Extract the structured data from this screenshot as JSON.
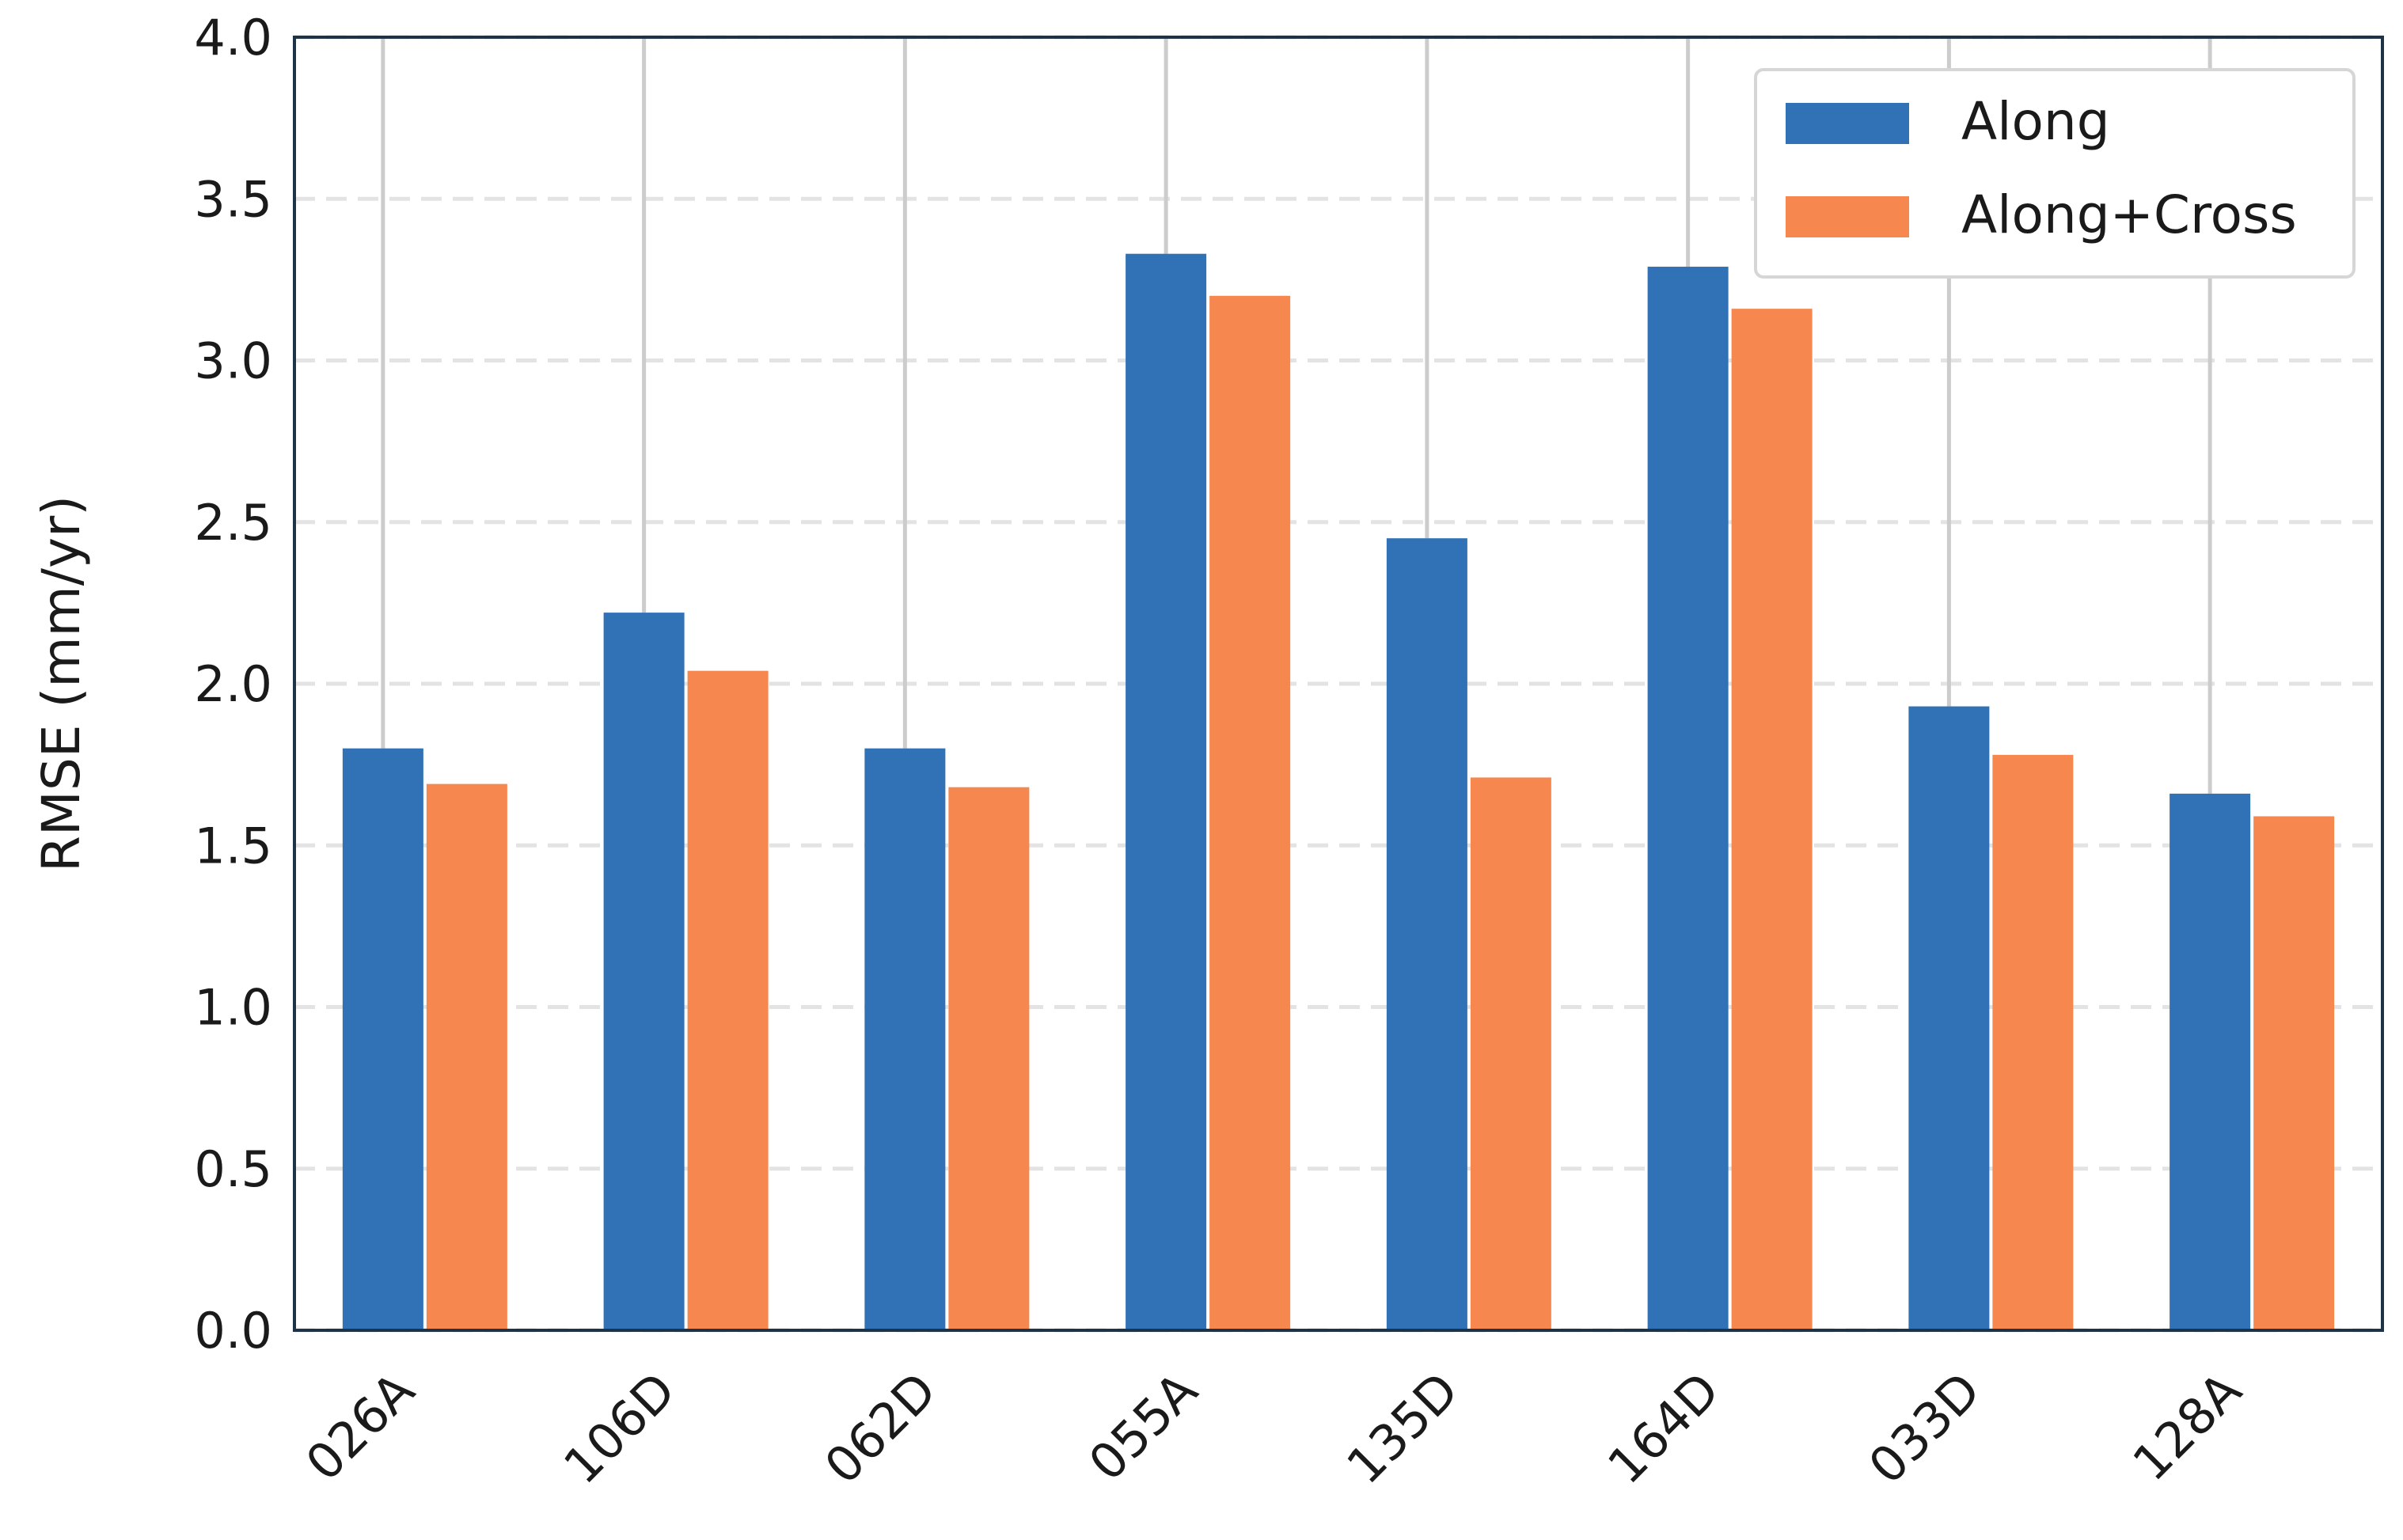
{
  "chart_data": {
    "type": "bar",
    "title": "",
    "xlabel": "",
    "ylabel": "RMSE (mm/yr)",
    "categories": [
      "026A",
      "106D",
      "062D",
      "055A",
      "135D",
      "164D",
      "033D",
      "128A"
    ],
    "series": [
      {
        "name": "Along",
        "color": "#3171b5",
        "values": [
          1.8,
          2.22,
          1.8,
          3.33,
          2.45,
          3.29,
          1.93,
          1.66
        ]
      },
      {
        "name": "Along+Cross",
        "color": "#f6874f",
        "values": [
          1.69,
          2.04,
          1.68,
          3.2,
          1.71,
          3.16,
          1.78,
          1.59
        ]
      }
    ],
    "ylim": [
      0,
      4.0
    ],
    "yticks": [
      "0.0",
      "0.5",
      "1.0",
      "1.5",
      "2.0",
      "2.5",
      "3.0",
      "3.5",
      "4.0"
    ],
    "grid": "horizontal dashed",
    "legend_position": "top-right",
    "colors": {
      "frame": "#1f3347",
      "grid": "#e3e3e3",
      "stem": "#cccccc"
    }
  }
}
